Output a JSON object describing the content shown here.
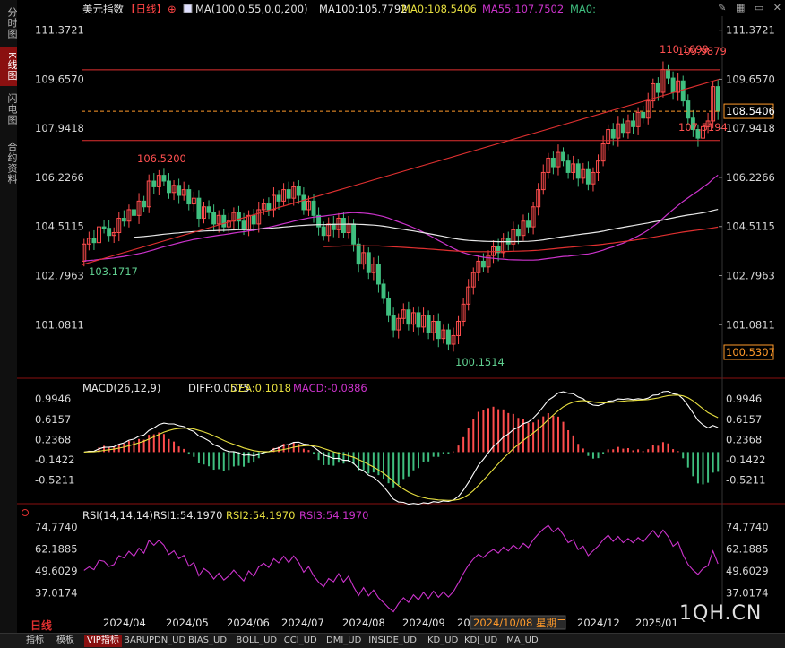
{
  "left_tabs": [
    {
      "label": "分时图",
      "active": false
    },
    {
      "label": "K线图",
      "active": true
    },
    {
      "label": "闪电图",
      "active": false
    },
    {
      "label": "合约资料",
      "active": false
    }
  ],
  "header": {
    "name": "美元指数",
    "period": "【日线】",
    "ma_param": "MA(100,0,55,0,0,200)",
    "ma100": "MA100:105.7792",
    "ma0": "MA0:108.5406",
    "ma55": "MA55:107.7502",
    "ma0b": "MA0:"
  },
  "macd_header": {
    "name": "MACD(26,12,9)",
    "diff": "DIFF:0.0575",
    "dea": "DEA:0.1018",
    "macd": "MACD:-0.0886"
  },
  "rsi_header": {
    "name": "RSI(14,14,14)",
    "rsi1": "RSI1:54.1970",
    "rsi2": "RSI2:54.1970",
    "rsi3": "RSI3:54.1970"
  },
  "period_label": "日线",
  "watermark": "1QH.CN",
  "cursor_date": "2024/10/08 星期二",
  "bottom_tabs": [
    {
      "label": "指标",
      "active": false
    },
    {
      "label": "模板",
      "active": false
    },
    {
      "label": "VIP指标",
      "active": true
    },
    {
      "label": "BARUPDN_UD",
      "active": false
    },
    {
      "label": "BIAS_UD",
      "active": false
    },
    {
      "label": "BOLL_UD",
      "active": false
    },
    {
      "label": "CCI_UD",
      "active": false
    },
    {
      "label": "DMI_UD",
      "active": false
    },
    {
      "label": "INSIDE_UD",
      "active": false
    },
    {
      "label": "KD_UD",
      "active": false
    },
    {
      "label": "KDJ_UD",
      "active": false
    },
    {
      "label": "MA_UD",
      "active": false
    }
  ],
  "colors": {
    "up": "#ff4d4d",
    "down": "#3fbf7f",
    "ma100": "#e8e8e8",
    "ma55": "#cc33cc",
    "ma200": "#e03030",
    "trend": "#e03030",
    "diff": "#ffffff",
    "dea": "#e8e040",
    "rsi": "#cc33cc",
    "current_price": "#ff9a2a"
  },
  "chart_data": {
    "type": "candlestick",
    "price_axis": [
      "111.3721",
      "109.6570",
      "107.9418",
      "106.2266",
      "104.5115",
      "102.7963",
      "101.0811"
    ],
    "price_range": [
      99.9,
      111.8
    ],
    "annotations": {
      "high_label": "106.5200",
      "low_label_start": "103.1717",
      "low_label": "100.1514",
      "top_label": "110.1699",
      "top_label2": "109.9879",
      "level_label": "107.5194",
      "current_price": "108.5406",
      "low_box": "100.5307"
    },
    "levels": {
      "top": 109.9879,
      "mid": 107.5194,
      "current": 108.5406
    },
    "candles": [
      [
        103.3,
        103.9
      ],
      [
        103.9,
        104.1
      ],
      [
        104.1,
        103.95
      ],
      [
        103.95,
        104.5
      ],
      [
        104.5,
        104.45
      ],
      [
        104.45,
        104.2
      ],
      [
        104.2,
        104.3
      ],
      [
        104.3,
        104.8
      ],
      [
        104.8,
        104.7
      ],
      [
        104.7,
        105.1
      ],
      [
        105.1,
        104.9
      ],
      [
        104.9,
        105.4
      ],
      [
        105.4,
        105.2
      ],
      [
        105.2,
        106.1
      ],
      [
        106.1,
        105.9
      ],
      [
        105.9,
        106.3
      ],
      [
        106.3,
        106.1
      ],
      [
        106.1,
        105.7
      ],
      [
        105.7,
        105.95
      ],
      [
        105.95,
        105.6
      ],
      [
        105.6,
        105.8
      ],
      [
        105.8,
        105.3
      ],
      [
        105.3,
        105.5
      ],
      [
        105.5,
        104.8
      ],
      [
        104.8,
        105.2
      ],
      [
        105.2,
        105.0
      ],
      [
        105.0,
        104.6
      ],
      [
        104.6,
        104.9
      ],
      [
        104.9,
        104.5
      ],
      [
        104.5,
        104.7
      ],
      [
        104.7,
        105.0
      ],
      [
        105.0,
        104.7
      ],
      [
        104.7,
        104.4
      ],
      [
        104.4,
        104.9
      ],
      [
        104.9,
        104.6
      ],
      [
        104.6,
        105.1
      ],
      [
        105.1,
        105.3
      ],
      [
        105.3,
        105.1
      ],
      [
        105.1,
        105.6
      ],
      [
        105.6,
        105.4
      ],
      [
        105.4,
        105.8
      ],
      [
        105.8,
        105.5
      ],
      [
        105.5,
        105.9
      ],
      [
        105.9,
        105.6
      ],
      [
        105.6,
        105.1
      ],
      [
        105.1,
        105.4
      ],
      [
        105.4,
        104.9
      ],
      [
        104.9,
        104.5
      ],
      [
        104.5,
        104.2
      ],
      [
        104.2,
        104.6
      ],
      [
        104.6,
        104.4
      ],
      [
        104.4,
        104.8
      ],
      [
        104.8,
        104.3
      ],
      [
        104.3,
        104.6
      ],
      [
        104.6,
        103.9
      ],
      [
        103.9,
        103.2
      ],
      [
        103.2,
        103.6
      ],
      [
        103.6,
        102.9
      ],
      [
        102.9,
        103.2
      ],
      [
        103.2,
        102.5
      ],
      [
        102.5,
        102.0
      ],
      [
        102.0,
        101.4
      ],
      [
        101.4,
        100.9
      ],
      [
        100.9,
        101.3
      ],
      [
        101.3,
        101.6
      ],
      [
        101.6,
        101.1
      ],
      [
        101.1,
        101.5
      ],
      [
        101.5,
        101.0
      ],
      [
        101.0,
        101.4
      ],
      [
        101.4,
        100.8
      ],
      [
        100.8,
        101.2
      ],
      [
        101.2,
        100.6
      ],
      [
        100.6,
        100.9
      ],
      [
        100.9,
        100.4
      ],
      [
        100.4,
        100.7
      ],
      [
        100.7,
        101.2
      ],
      [
        101.2,
        101.8
      ],
      [
        101.8,
        102.4
      ],
      [
        102.4,
        102.9
      ],
      [
        102.9,
        103.3
      ],
      [
        103.3,
        103.1
      ],
      [
        103.1,
        103.5
      ],
      [
        103.5,
        103.8
      ],
      [
        103.8,
        103.6
      ],
      [
        103.6,
        104.1
      ],
      [
        104.1,
        103.9
      ],
      [
        103.9,
        104.4
      ],
      [
        104.4,
        104.2
      ],
      [
        104.2,
        104.7
      ],
      [
        104.7,
        104.5
      ],
      [
        104.5,
        105.2
      ],
      [
        105.2,
        105.8
      ],
      [
        105.8,
        106.4
      ],
      [
        106.4,
        106.9
      ],
      [
        106.9,
        106.6
      ],
      [
        106.6,
        107.1
      ],
      [
        107.1,
        106.8
      ],
      [
        106.8,
        106.4
      ],
      [
        106.4,
        106.7
      ],
      [
        106.7,
        106.2
      ],
      [
        106.2,
        106.5
      ],
      [
        106.5,
        106.0
      ],
      [
        106.0,
        106.4
      ],
      [
        106.4,
        106.8
      ],
      [
        106.8,
        107.4
      ],
      [
        107.4,
        107.9
      ],
      [
        107.9,
        107.6
      ],
      [
        107.6,
        108.1
      ],
      [
        108.1,
        107.8
      ],
      [
        107.8,
        108.2
      ],
      [
        108.2,
        108.0
      ],
      [
        108.0,
        108.5
      ],
      [
        108.5,
        108.3
      ],
      [
        108.3,
        108.9
      ],
      [
        108.9,
        109.5
      ],
      [
        109.5,
        109.2
      ],
      [
        109.2,
        110.0
      ],
      [
        110.0,
        109.7
      ],
      [
        109.7,
        109.2
      ],
      [
        109.2,
        109.6
      ],
      [
        109.6,
        108.9
      ],
      [
        108.9,
        108.3
      ],
      [
        108.3,
        107.9
      ],
      [
        107.9,
        107.6
      ],
      [
        107.6,
        108.0
      ],
      [
        108.0,
        108.2
      ],
      [
        108.2,
        109.4
      ],
      [
        109.4,
        108.54
      ]
    ],
    "ma100_start": 104.1,
    "ma55_start": 103.3,
    "ma200_start": 103.4,
    "macd": {
      "axis": [
        "0.9946",
        "0.6157",
        "0.2368",
        "-0.1422",
        "-0.5211"
      ],
      "range": [
        -0.8,
        1.15
      ]
    },
    "rsi": {
      "axis": [
        "74.7740",
        "62.1885",
        "49.6029",
        "37.0174"
      ],
      "range": [
        25,
        80
      ]
    },
    "x_labels": [
      "2024/04",
      "2024/05",
      "2024/06",
      "2024/07",
      "2024/08",
      "2024/09",
      "20",
      "2024/12",
      "2025/01"
    ]
  }
}
